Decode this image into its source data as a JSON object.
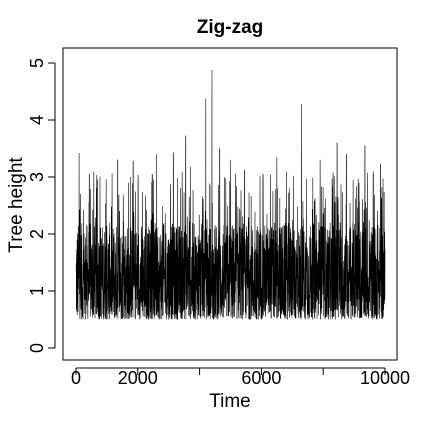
{
  "chart_data": {
    "type": "line",
    "title": "Zig-zag",
    "xlabel": "Time",
    "ylabel": "Tree height",
    "xlim": [
      0,
      10000
    ],
    "ylim": [
      0,
      5
    ],
    "x_ticks": [
      {
        "value": 0,
        "label": "0"
      },
      {
        "value": 2000,
        "label": "2000"
      },
      {
        "value": 4000,
        "label": ""
      },
      {
        "value": 6000,
        "label": "6000"
      },
      {
        "value": 8000,
        "label": ""
      },
      {
        "value": 10000,
        "label": "10000"
      }
    ],
    "y_ticks": [
      {
        "value": 0,
        "label": "0"
      },
      {
        "value": 1,
        "label": "1"
      },
      {
        "value": 2,
        "label": "2"
      },
      {
        "value": 3,
        "label": "3"
      },
      {
        "value": 4,
        "label": "4"
      },
      {
        "value": 5,
        "label": "5"
      }
    ],
    "grid": false,
    "line_color": "#000000",
    "trace": {
      "n": 10000,
      "typical_min": 0.5,
      "typical_max": 2.2,
      "mean": 1.1,
      "peaks": [
        {
          "x": 100,
          "y": 3.42
        },
        {
          "x": 430,
          "y": 3.05
        },
        {
          "x": 1350,
          "y": 3.3
        },
        {
          "x": 1850,
          "y": 3.28
        },
        {
          "x": 2600,
          "y": 3.4
        },
        {
          "x": 3150,
          "y": 3.42
        },
        {
          "x": 3550,
          "y": 3.72
        },
        {
          "x": 3700,
          "y": 3.18
        },
        {
          "x": 4200,
          "y": 4.37
        },
        {
          "x": 4400,
          "y": 4.88
        },
        {
          "x": 4650,
          "y": 3.5
        },
        {
          "x": 5000,
          "y": 3.3
        },
        {
          "x": 5450,
          "y": 3.12
        },
        {
          "x": 6050,
          "y": 3.05
        },
        {
          "x": 6500,
          "y": 3.35
        },
        {
          "x": 7300,
          "y": 4.28
        },
        {
          "x": 7900,
          "y": 3.3
        },
        {
          "x": 8450,
          "y": 3.6
        },
        {
          "x": 8750,
          "y": 3.4
        },
        {
          "x": 9350,
          "y": 3.55
        },
        {
          "x": 9850,
          "y": 3.22
        }
      ]
    }
  }
}
